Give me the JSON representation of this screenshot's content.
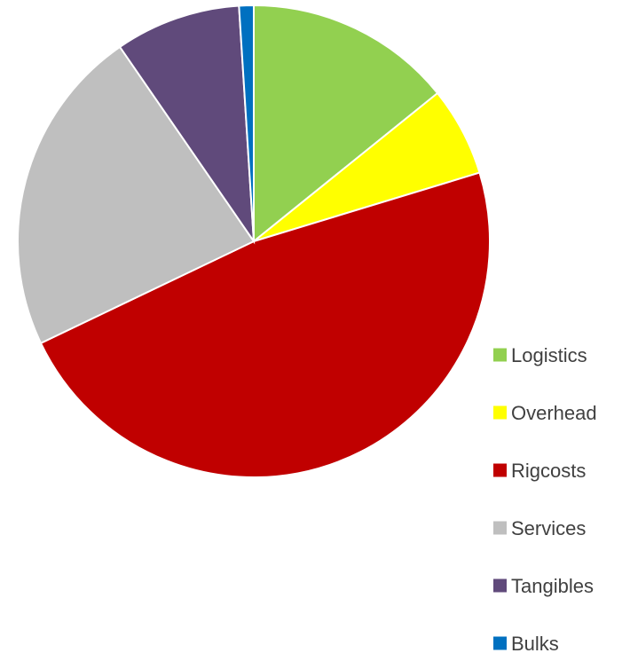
{
  "chart_data": {
    "type": "pie",
    "title": "",
    "start_angle_deg": 0,
    "direction": "clockwise",
    "legend_position": "right",
    "slices": [
      {
        "label": "Logistics",
        "value": 14.2,
        "color": "#92D050"
      },
      {
        "label": "Overhead",
        "value": 6.1,
        "color": "#FFFF00"
      },
      {
        "label": "Rig\u0003costs",
        "value": 47.6,
        "color": "#C00000"
      },
      {
        "label": "Services",
        "value": 22.5,
        "color": "#BFBFBF"
      },
      {
        "label": "Tangibles",
        "value": 8.6,
        "color": "#604A7B"
      },
      {
        "label": "Bulks",
        "value": 1.0,
        "color": "#0070C0"
      }
    ]
  }
}
